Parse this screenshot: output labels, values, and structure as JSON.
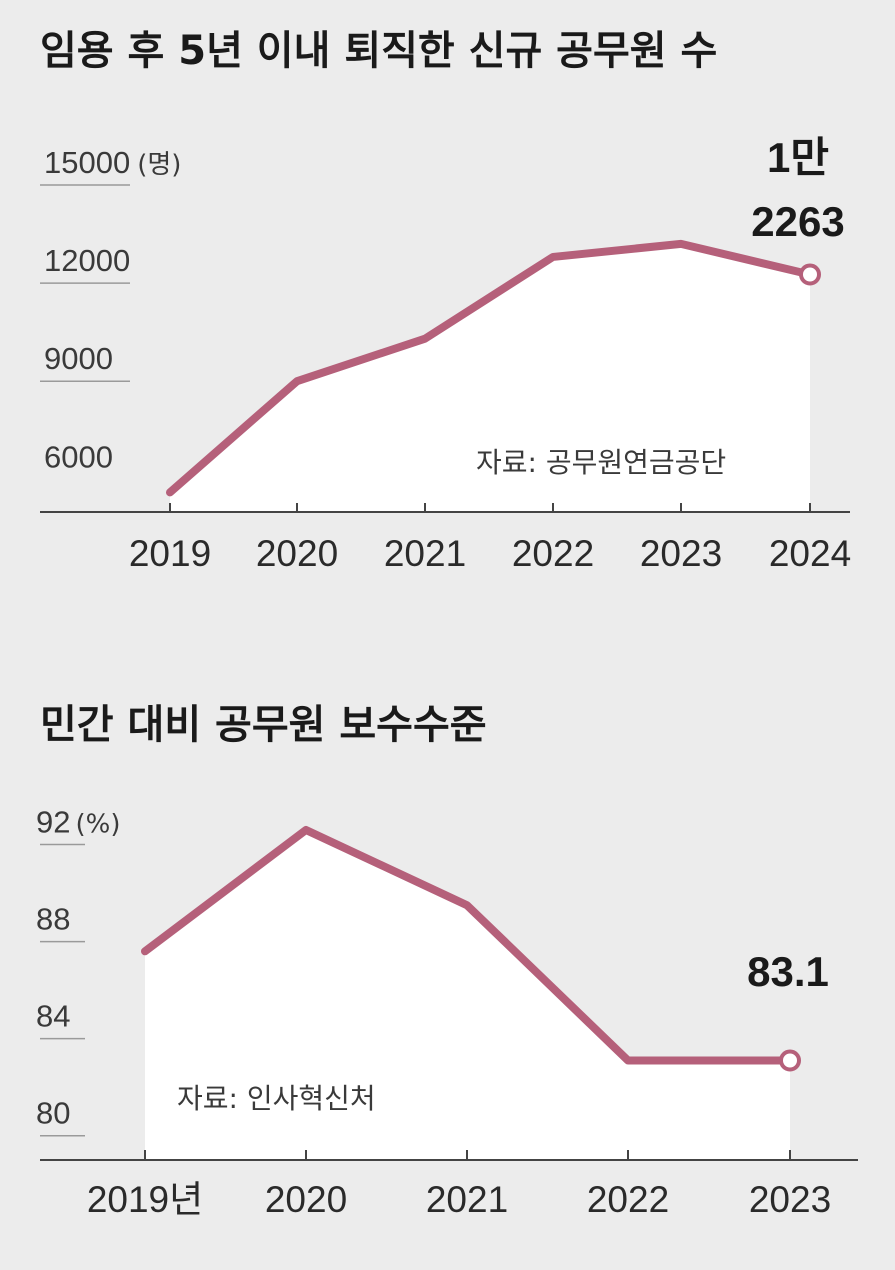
{
  "colors": {
    "background": "#ececec",
    "area_fill": "#ffffff",
    "line": "#b5607a",
    "axis": "#444444",
    "tick_line": "#9a9a9a"
  },
  "chart_data": [
    {
      "type": "area",
      "title": "임용 후 5년 이내 퇴직한 신규 공무원 수",
      "categories": [
        "2019",
        "2020",
        "2021",
        "2022",
        "2023",
        "2024"
      ],
      "series": [
        {
          "values": [
            5600,
            9000,
            10300,
            12800,
            13200,
            12263
          ]
        }
      ],
      "ylim": [
        5000,
        15000
      ],
      "yticks": [
        "15000",
        "12000",
        "9000",
        "6000"
      ],
      "ytick_values": [
        15000,
        12000,
        9000,
        6000
      ],
      "y_unit": "(명)",
      "callout": [
        "1만",
        "2263"
      ],
      "source": "자료: 공무원연금공단"
    },
    {
      "type": "area",
      "title": "민간 대비 공무원 보수수준",
      "categories": [
        "2019년",
        "2020",
        "2021",
        "2022",
        "2023"
      ],
      "series": [
        {
          "values": [
            87.6,
            92.6,
            89.5,
            83.1,
            83.1
          ]
        }
      ],
      "ylim": [
        79,
        94
      ],
      "yticks": [
        "92",
        "88",
        "84",
        "80"
      ],
      "ytick_values": [
        92,
        88,
        84,
        80
      ],
      "y_unit": "(%)",
      "callout": [
        "83.1"
      ],
      "source": "자료: 인사혁신처"
    }
  ]
}
